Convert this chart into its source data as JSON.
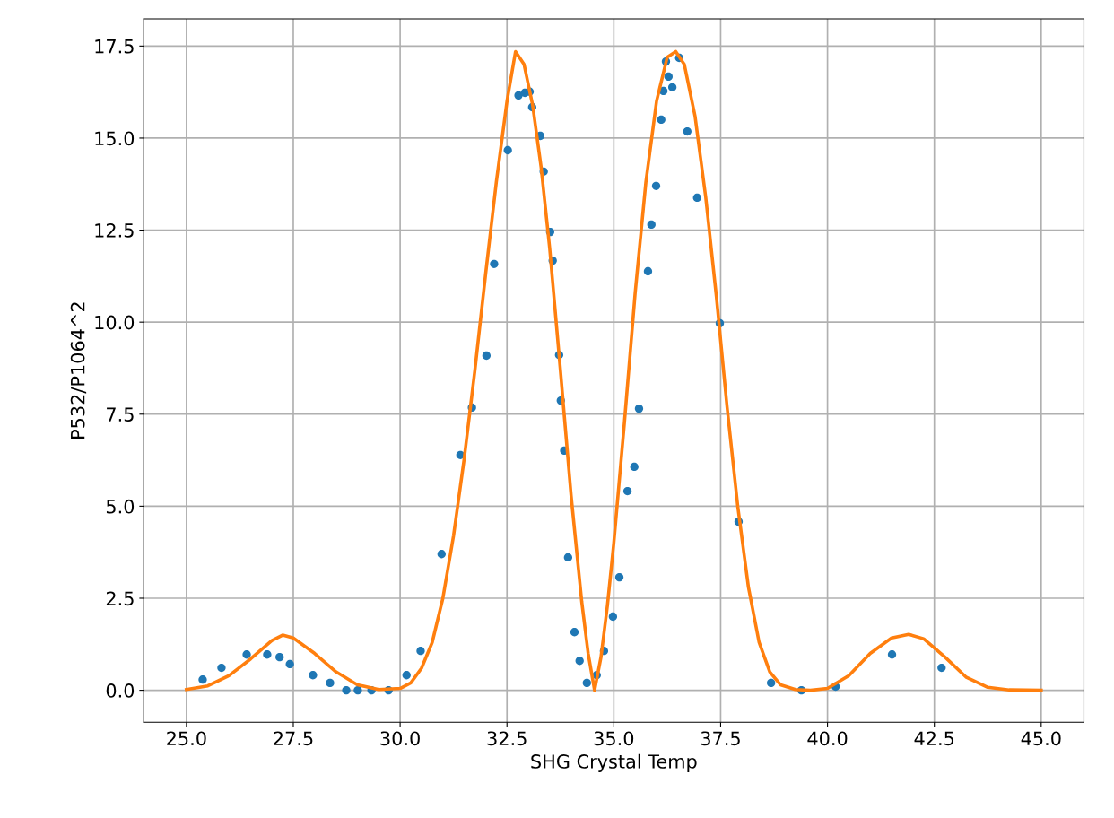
{
  "chart_data": {
    "type": "scatter",
    "xlabel": "SHG Crystal Temp",
    "ylabel": "P532/P1064^2",
    "xlim": [
      24.0,
      46.0
    ],
    "ylim": [
      -0.87,
      18.24
    ],
    "xticks": [
      {
        "value": 25,
        "label": "25.0"
      },
      {
        "value": 27.5,
        "label": "27.5"
      },
      {
        "value": 30,
        "label": "30.0"
      },
      {
        "value": 32.5,
        "label": "32.5"
      },
      {
        "value": 35,
        "label": "35.0"
      },
      {
        "value": 37.5,
        "label": "37.5"
      },
      {
        "value": 40,
        "label": "40.0"
      },
      {
        "value": 42.5,
        "label": "42.5"
      },
      {
        "value": 45,
        "label": "45.0"
      }
    ],
    "yticks": [
      {
        "value": 0,
        "label": "0.0"
      },
      {
        "value": 2.5,
        "label": "2.5"
      },
      {
        "value": 5,
        "label": "5.0"
      },
      {
        "value": 7.5,
        "label": "7.5"
      },
      {
        "value": 10,
        "label": "10.0"
      },
      {
        "value": 12.5,
        "label": "12.5"
      },
      {
        "value": 15,
        "label": "15.0"
      },
      {
        "value": 17.5,
        "label": "17.5"
      }
    ],
    "grid": true,
    "marker": "circle",
    "series": [
      {
        "color": "#1f77b4",
        "x": [
          25.38,
          25.82,
          26.41,
          26.89,
          27.18,
          27.42,
          27.96,
          28.36,
          28.74,
          29.01,
          29.33,
          29.73,
          30.15,
          30.48,
          30.97,
          31.41,
          31.68,
          32.02,
          32.2,
          32.52,
          32.77,
          32.92,
          33.03,
          33.09,
          33.28,
          33.36,
          33.51,
          33.57,
          33.72,
          33.76,
          33.84,
          33.93,
          34.08,
          34.2,
          34.37,
          34.6,
          34.77,
          34.98,
          35.13,
          35.32,
          35.48,
          35.59,
          35.8,
          35.88,
          35.99,
          36.11,
          36.16,
          36.22,
          36.28,
          36.37,
          36.53,
          36.72,
          36.95,
          37.48,
          37.92,
          38.68,
          39.39,
          40.19,
          41.51,
          42.67
        ],
        "values": [
          0.29,
          0.61,
          0.97,
          0.97,
          0.9,
          0.71,
          0.41,
          0.2,
          0,
          0,
          0,
          0,
          0.41,
          1.07,
          3.7,
          6.39,
          7.68,
          9.09,
          11.58,
          14.67,
          16.16,
          16.23,
          16.26,
          15.84,
          15.06,
          14.09,
          12.45,
          11.67,
          9.11,
          7.87,
          6.51,
          3.61,
          1.58,
          0.8,
          0.2,
          0.41,
          1.07,
          2.0,
          3.07,
          5.41,
          6.07,
          7.65,
          11.38,
          12.65,
          13.7,
          15.5,
          16.28,
          17.08,
          16.67,
          16.38,
          17.18,
          15.18,
          13.38,
          9.97,
          4.58,
          0.2,
          0,
          0.1,
          0.97,
          0.61
        ]
      },
      {
        "type": "line",
        "color": "#ff7f0e",
        "line_style": "solid",
        "marker": "none",
        "x": [
          25,
          25.5,
          26,
          26.5,
          27,
          27.25,
          27.5,
          28,
          28.5,
          29,
          29.5,
          30,
          30.25,
          30.5,
          30.75,
          31,
          31.25,
          31.5,
          31.75,
          32,
          32.25,
          32.5,
          32.7,
          32.9,
          33.1,
          33.3,
          33.5,
          33.75,
          34,
          34.25,
          34.4,
          34.55,
          34.7,
          34.85,
          35,
          35.25,
          35.5,
          35.75,
          36,
          36.25,
          36.45,
          36.65,
          36.9,
          37.15,
          37.4,
          37.65,
          37.9,
          38.15,
          38.4,
          38.65,
          38.9,
          39.25,
          39.6,
          40,
          40.5,
          41,
          41.5,
          41.9,
          42.25,
          42.75,
          43.25,
          43.75,
          44.25,
          45
        ],
        "values": [
          0.02,
          0.12,
          0.4,
          0.85,
          1.35,
          1.5,
          1.42,
          1.0,
          0.5,
          0.15,
          0.02,
          0.05,
          0.2,
          0.6,
          1.3,
          2.5,
          4.2,
          6.3,
          8.7,
          11.3,
          13.8,
          16.0,
          17.35,
          17.0,
          15.9,
          14.2,
          12.0,
          8.7,
          5.3,
          2.4,
          1.0,
          0.0,
          0.9,
          2.3,
          4.0,
          7.3,
          10.8,
          13.8,
          16.0,
          17.2,
          17.35,
          17.0,
          15.6,
          13.4,
          10.7,
          7.7,
          5.0,
          2.8,
          1.3,
          0.5,
          0.15,
          0.02,
          0.0,
          0.05,
          0.4,
          1.0,
          1.42,
          1.52,
          1.4,
          0.9,
          0.35,
          0.08,
          0.01,
          0.0
        ]
      }
    ]
  }
}
